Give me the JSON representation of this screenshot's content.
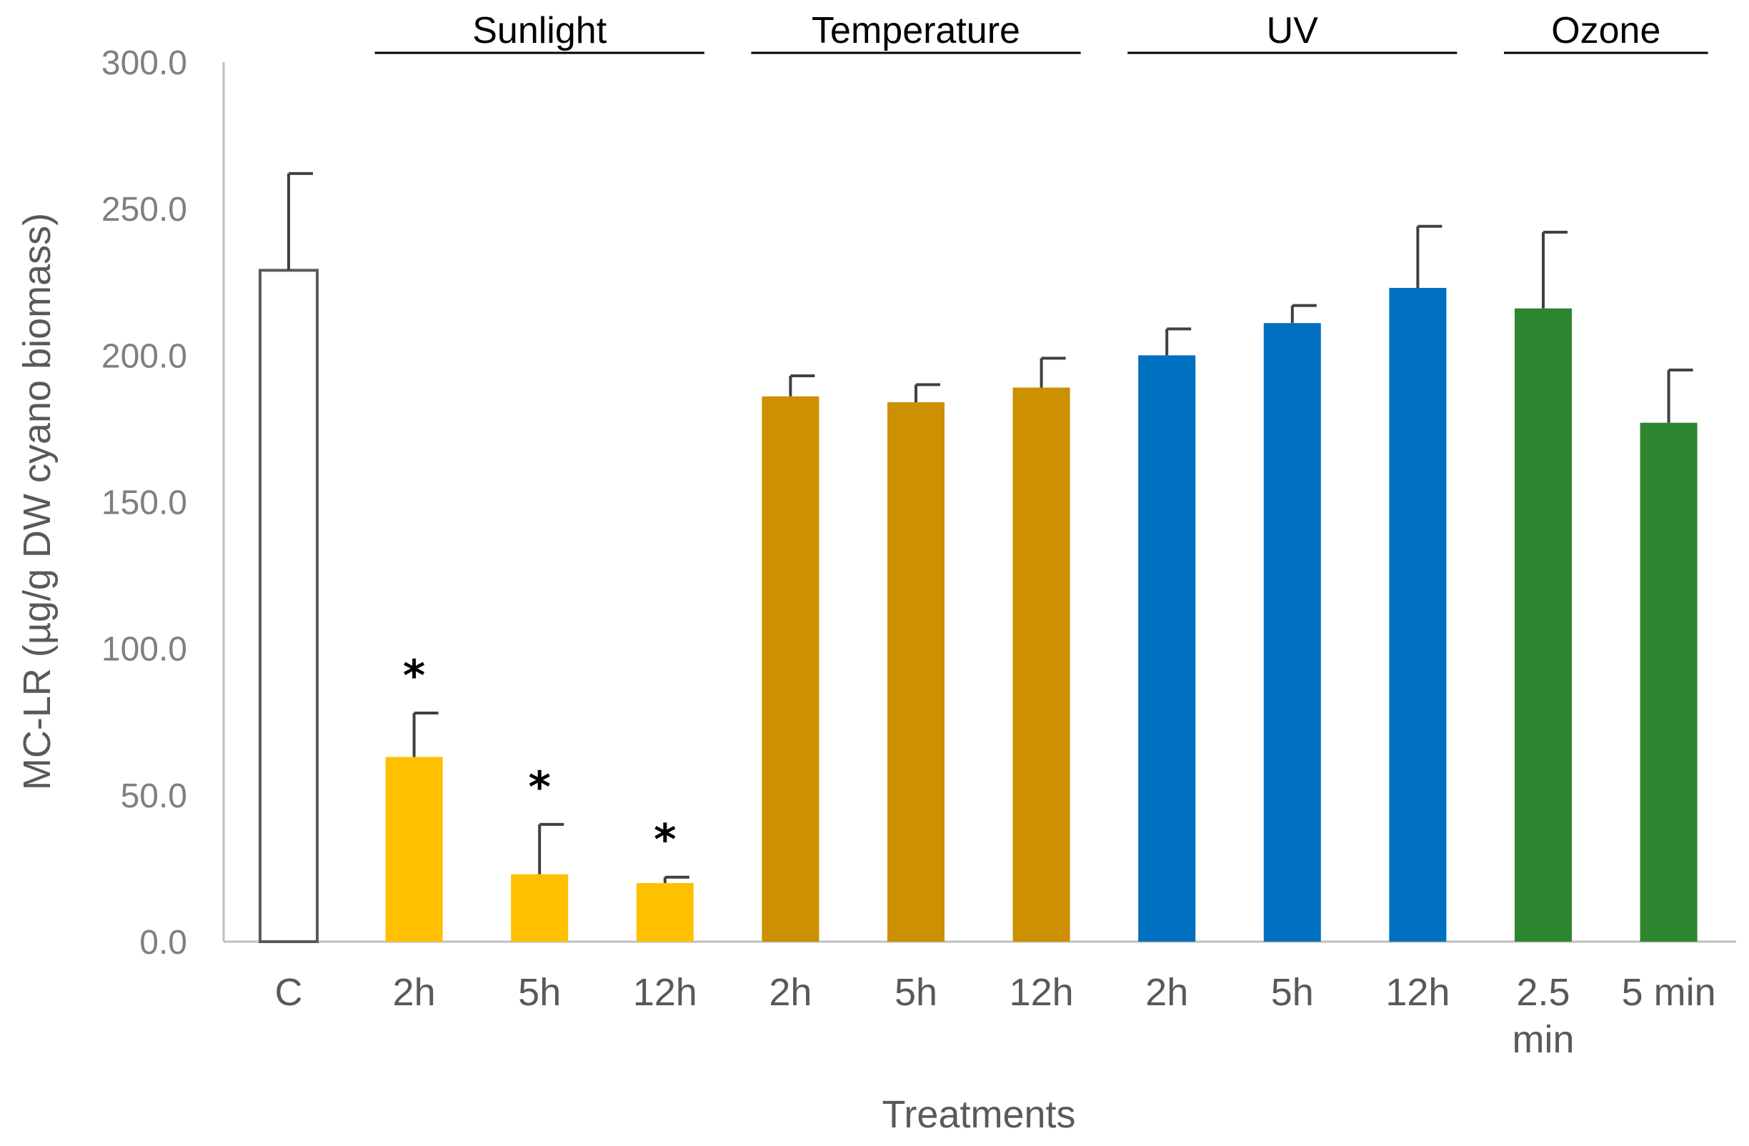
{
  "chart_data": {
    "type": "bar",
    "title": "",
    "xlabel": "Treatments",
    "ylabel": "MC-LR (µg/g DW cyano biomass)",
    "ylim": [
      0,
      300
    ],
    "yticks": [
      "0.0",
      "50.0",
      "100.0",
      "150.0",
      "200.0",
      "250.0",
      "300.0"
    ],
    "grid": false,
    "categories": [
      "C",
      "2h",
      "5h",
      "12h",
      "2h",
      "5h",
      "12h",
      "2h",
      "5h",
      "12h",
      "2.5 min",
      "5 min"
    ],
    "values": [
      229,
      63,
      23,
      20,
      186,
      184,
      189,
      200,
      211,
      223,
      216,
      177
    ],
    "error": [
      33,
      15,
      17,
      2,
      7,
      6,
      10,
      9,
      6,
      21,
      26,
      18
    ],
    "significant": [
      false,
      true,
      true,
      true,
      false,
      false,
      false,
      false,
      false,
      false,
      false,
      false
    ],
    "significance_marker": "*",
    "bar_colors": [
      "#ffffff",
      "#ffc000",
      "#ffc000",
      "#ffc000",
      "#cc9000",
      "#cc9000",
      "#cc9000",
      "#0070c0",
      "#0070c0",
      "#0070c0",
      "#2e8530",
      "#2e8530"
    ],
    "groups": [
      {
        "name": "Sunlight",
        "first": 1,
        "last": 3
      },
      {
        "name": "Temperature",
        "first": 4,
        "last": 6
      },
      {
        "name": "UV",
        "first": 7,
        "last": 9
      },
      {
        "name": "Ozone",
        "first": 10,
        "last": 11
      }
    ]
  }
}
